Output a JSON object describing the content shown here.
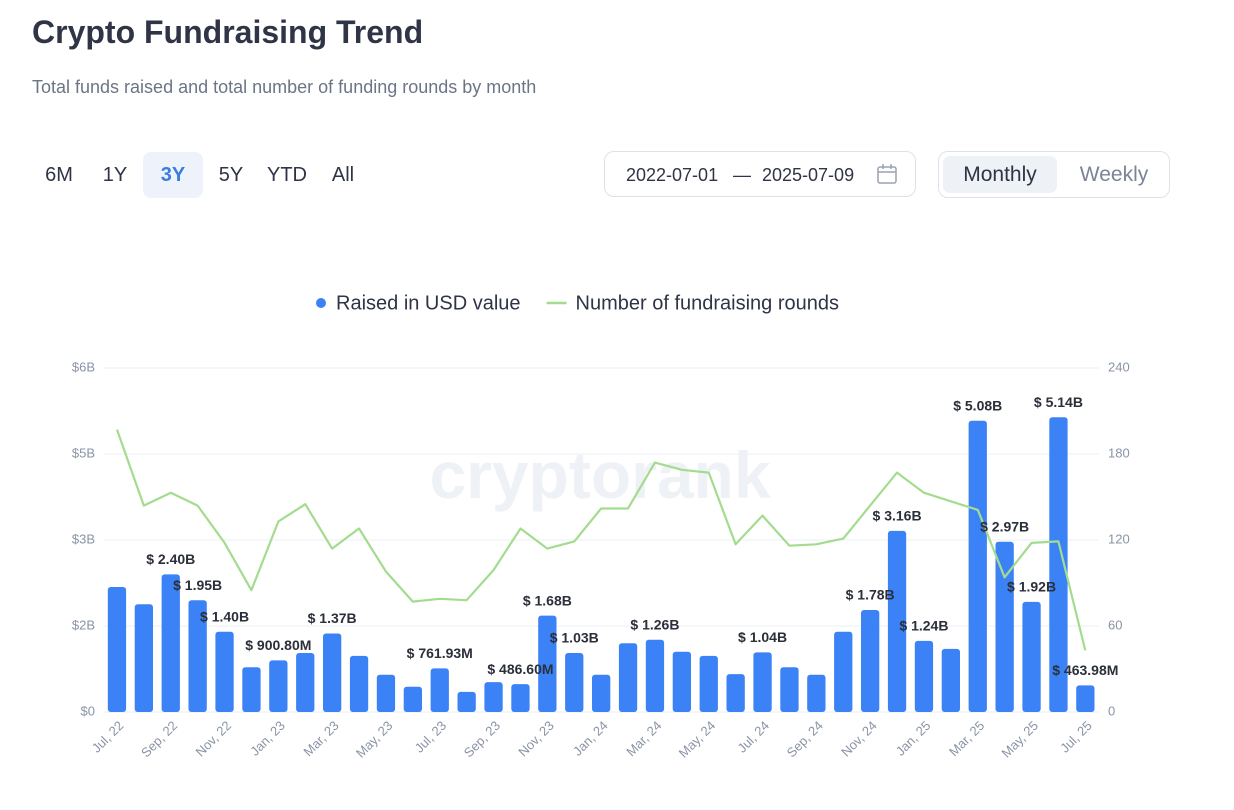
{
  "header": {
    "title": "Crypto Fundraising Trend",
    "subtitle": "Total funds raised and total number of funding rounds by month"
  },
  "controls": {
    "ranges": [
      {
        "label": "6M",
        "active": false
      },
      {
        "label": "1Y",
        "active": false
      },
      {
        "label": "3Y",
        "active": true
      },
      {
        "label": "5Y",
        "active": false
      },
      {
        "label": "YTD",
        "active": false
      },
      {
        "label": "All",
        "active": false
      }
    ],
    "date_range": {
      "start": "2022-07-01",
      "separator": "—",
      "end": "2025-07-09"
    },
    "granularity": [
      {
        "label": "Monthly",
        "active": true
      },
      {
        "label": "Weekly",
        "active": false
      }
    ]
  },
  "chart_data": {
    "type": "combo",
    "watermark": "cryptorank",
    "categories": [
      "Jul, 22",
      null,
      "Sep, 22",
      null,
      "Nov, 22",
      null,
      "Jan, 23",
      null,
      "Mar, 23",
      null,
      "May, 23",
      null,
      "Jul, 23",
      null,
      "Sep, 23",
      null,
      "Nov, 23",
      null,
      "Jan, 24",
      null,
      "Mar, 24",
      null,
      "May, 24",
      null,
      "Jul, 24",
      null,
      "Sep, 24",
      null,
      "Nov, 24",
      null,
      "Jan, 25",
      null,
      "Mar, 25",
      null,
      "May, 25",
      null,
      "Jul, 25"
    ],
    "series": [
      {
        "name": "Raised in USD value",
        "type": "bar",
        "color": "#3b82f6",
        "axis": "y",
        "values": [
          2.18,
          1.88,
          2.4,
          1.95,
          1.4,
          0.78,
          0.9008,
          1.03,
          1.37,
          0.98,
          0.65,
          0.44,
          0.76193,
          0.35,
          0.52,
          0.4866,
          1.68,
          1.03,
          0.65,
          1.2,
          1.26,
          1.05,
          0.98,
          0.66,
          1.04,
          0.78,
          0.65,
          1.4,
          1.78,
          3.16,
          1.24,
          1.1,
          5.08,
          2.97,
          1.92,
          5.14,
          0.46398
        ],
        "value_labels": [
          null,
          null,
          "$ 2.40B",
          "$ 1.95B",
          "$ 1.40B",
          null,
          "$ 900.80M",
          null,
          "$ 1.37B",
          null,
          null,
          null,
          "$ 761.93M",
          null,
          null,
          "$ 486.60M",
          "$ 1.68B",
          "$ 1.03B",
          null,
          null,
          "$ 1.26B",
          null,
          null,
          null,
          "$ 1.04B",
          null,
          null,
          null,
          "$ 1.78B",
          "$ 3.16B",
          "$ 1.24B",
          null,
          "$ 5.08B",
          "$ 2.97B",
          "$ 1.92B",
          "$ 5.14B",
          "$ 463.98M"
        ]
      },
      {
        "name": "Number of fundraising rounds",
        "type": "line",
        "color": "#a3dc8f",
        "axis": "y2",
        "values": [
          197,
          144,
          153,
          144,
          118,
          85,
          133,
          145,
          114,
          128,
          98,
          77,
          79,
          78,
          99,
          128,
          114,
          119,
          142,
          142,
          174,
          169,
          167,
          117,
          137,
          116,
          117,
          121,
          144,
          167,
          153,
          147,
          141,
          94,
          118,
          119,
          43
        ]
      }
    ],
    "ylim": [
      0,
      6
    ],
    "yticks": [
      {
        "value": 0,
        "label": "$0"
      },
      {
        "value": 1.5,
        "label": "$2B"
      },
      {
        "value": 3,
        "label": "$3B"
      },
      {
        "value": 4.5,
        "label": "$5B"
      },
      {
        "value": 6,
        "label": "$6B"
      }
    ],
    "y2lim": [
      0,
      240
    ],
    "y2ticks": [
      0,
      60,
      120,
      180,
      240
    ],
    "grid": true,
    "legend": "top"
  }
}
